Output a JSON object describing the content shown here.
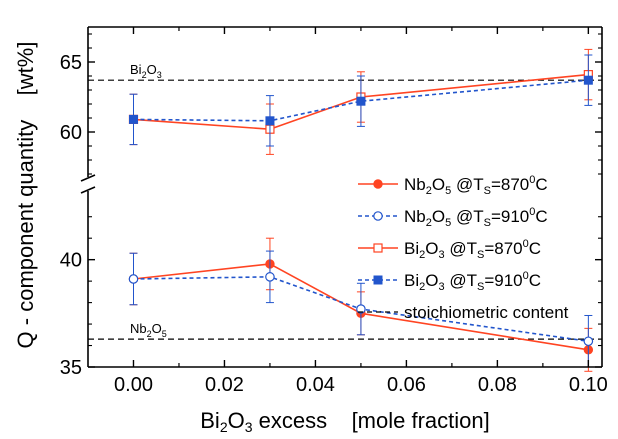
{
  "chart_data": {
    "type": "line",
    "xlabel": {
      "main": "Bi",
      "sub": "2",
      "rest": "O",
      "sub2": "3",
      "tail": " excess    [mole fraction]"
    },
    "ylabel": "Q - component quantity    [wt%]",
    "xlim": [
      -0.01,
      0.103
    ],
    "x_ticks": [
      {
        "v": 0.0,
        "label": "0.00"
      },
      {
        "v": 0.02,
        "label": "0.02"
      },
      {
        "v": 0.04,
        "label": "0.04"
      },
      {
        "v": 0.06,
        "label": "0.06"
      },
      {
        "v": 0.08,
        "label": "0.08"
      },
      {
        "v": 0.1,
        "label": "0.10"
      }
    ],
    "y_segments": [
      {
        "name": "upper",
        "ylim": [
          57,
          67
        ],
        "ticks": [
          {
            "v": 60,
            "label": "60"
          },
          {
            "v": 65,
            "label": "65"
          }
        ]
      },
      {
        "name": "lower",
        "ylim": [
          35,
          42.5
        ],
        "ticks": [
          {
            "v": 35,
            "label": "35"
          },
          {
            "v": 40,
            "label": "40"
          }
        ]
      }
    ],
    "x": [
      0.0,
      0.03,
      0.05,
      0.1
    ],
    "series": [
      {
        "name": {
          "a": "Nb",
          "s1": "2",
          "b": "O",
          "s2": "5",
          "c": "   @T",
          "s3": "S",
          "d": "=870",
          "s4": "0",
          "e": "C"
        },
        "segment": "lower",
        "color": "#ff4422",
        "dash": "",
        "marker": "circle-filled",
        "values": [
          39.1,
          39.8,
          37.5,
          35.8
        ],
        "errors": [
          1.2,
          1.2,
          1.0,
          1.0
        ]
      },
      {
        "name": {
          "a": "Nb",
          "s1": "2",
          "b": "O",
          "s2": "5",
          "c": "   @T",
          "s3": "S",
          "d": "=910",
          "s4": "0",
          "e": "C"
        },
        "segment": "lower",
        "color": "#2255cc",
        "dash": "4,3",
        "marker": "circle-open",
        "values": [
          39.1,
          39.2,
          37.7,
          36.2
        ],
        "errors": [
          1.2,
          1.2,
          1.2,
          1.2
        ]
      },
      {
        "name": {
          "a": "Bi",
          "s1": "2",
          "b": "O",
          "s2": "3",
          "c": "   @T",
          "s3": "S",
          "d": "=870",
          "s4": "0",
          "e": "C"
        },
        "segment": "upper",
        "color": "#ff4422",
        "dash": "",
        "marker": "square-open",
        "values": [
          60.9,
          60.2,
          62.5,
          64.1
        ],
        "errors": [
          1.8,
          1.8,
          1.8,
          1.8
        ]
      },
      {
        "name": {
          "a": "Bi",
          "s1": "2",
          "b": "O",
          "s2": "3",
          "c": "   @T",
          "s3": "S",
          "d": "=910",
          "s4": "0",
          "e": "C"
        },
        "segment": "upper",
        "color": "#2255cc",
        "dash": "4,3",
        "marker": "square-filled",
        "values": [
          60.9,
          60.8,
          62.2,
          63.7
        ],
        "errors": [
          1.8,
          1.8,
          1.8,
          1.8
        ]
      }
    ],
    "reference_lines": [
      {
        "segment": "upper",
        "y": 63.7,
        "label": {
          "a": "Bi",
          "s1": "2",
          "b": "O",
          "s2": "3"
        }
      },
      {
        "segment": "lower",
        "y": 36.3,
        "label": {
          "a": "Nb",
          "s1": "2",
          "b": "O",
          "s2": "5"
        }
      }
    ],
    "legend_ref": "stoichiometric content",
    "legend_position": "right"
  }
}
